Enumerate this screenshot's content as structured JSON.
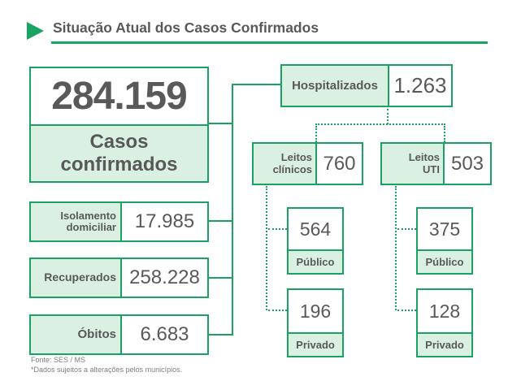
{
  "colors": {
    "green": "#1aa262",
    "light_green": "#d9f0e2",
    "text_gray": "#595959",
    "footer_gray": "#7f7f7f"
  },
  "header": {
    "title": "Situação Atual dos Casos Confirmados"
  },
  "summary": {
    "value": "284.159",
    "label": "Casos confirmados"
  },
  "left_stats": [
    {
      "label": "Isolamento domiciliar",
      "value": "17.985"
    },
    {
      "label": "Recuperados",
      "value": "258.228"
    },
    {
      "label": "Óbitos",
      "value": "6.683"
    }
  ],
  "hospitalized": {
    "label": "Hospitalizados",
    "value": "1.263"
  },
  "beds": [
    {
      "label": "Leitos clínicos",
      "value": "760",
      "breakdown": [
        {
          "value": "564",
          "label": "Público"
        },
        {
          "value": "196",
          "label": "Privado"
        }
      ]
    },
    {
      "label": "Leitos UTI",
      "value": "503",
      "breakdown": [
        {
          "value": "375",
          "label": "Público"
        },
        {
          "value": "128",
          "label": "Privado"
        }
      ]
    }
  ],
  "footer": {
    "source": "Fonte: SES / MS",
    "note": "*Dados sujeitos a alterações pelos municípios."
  }
}
